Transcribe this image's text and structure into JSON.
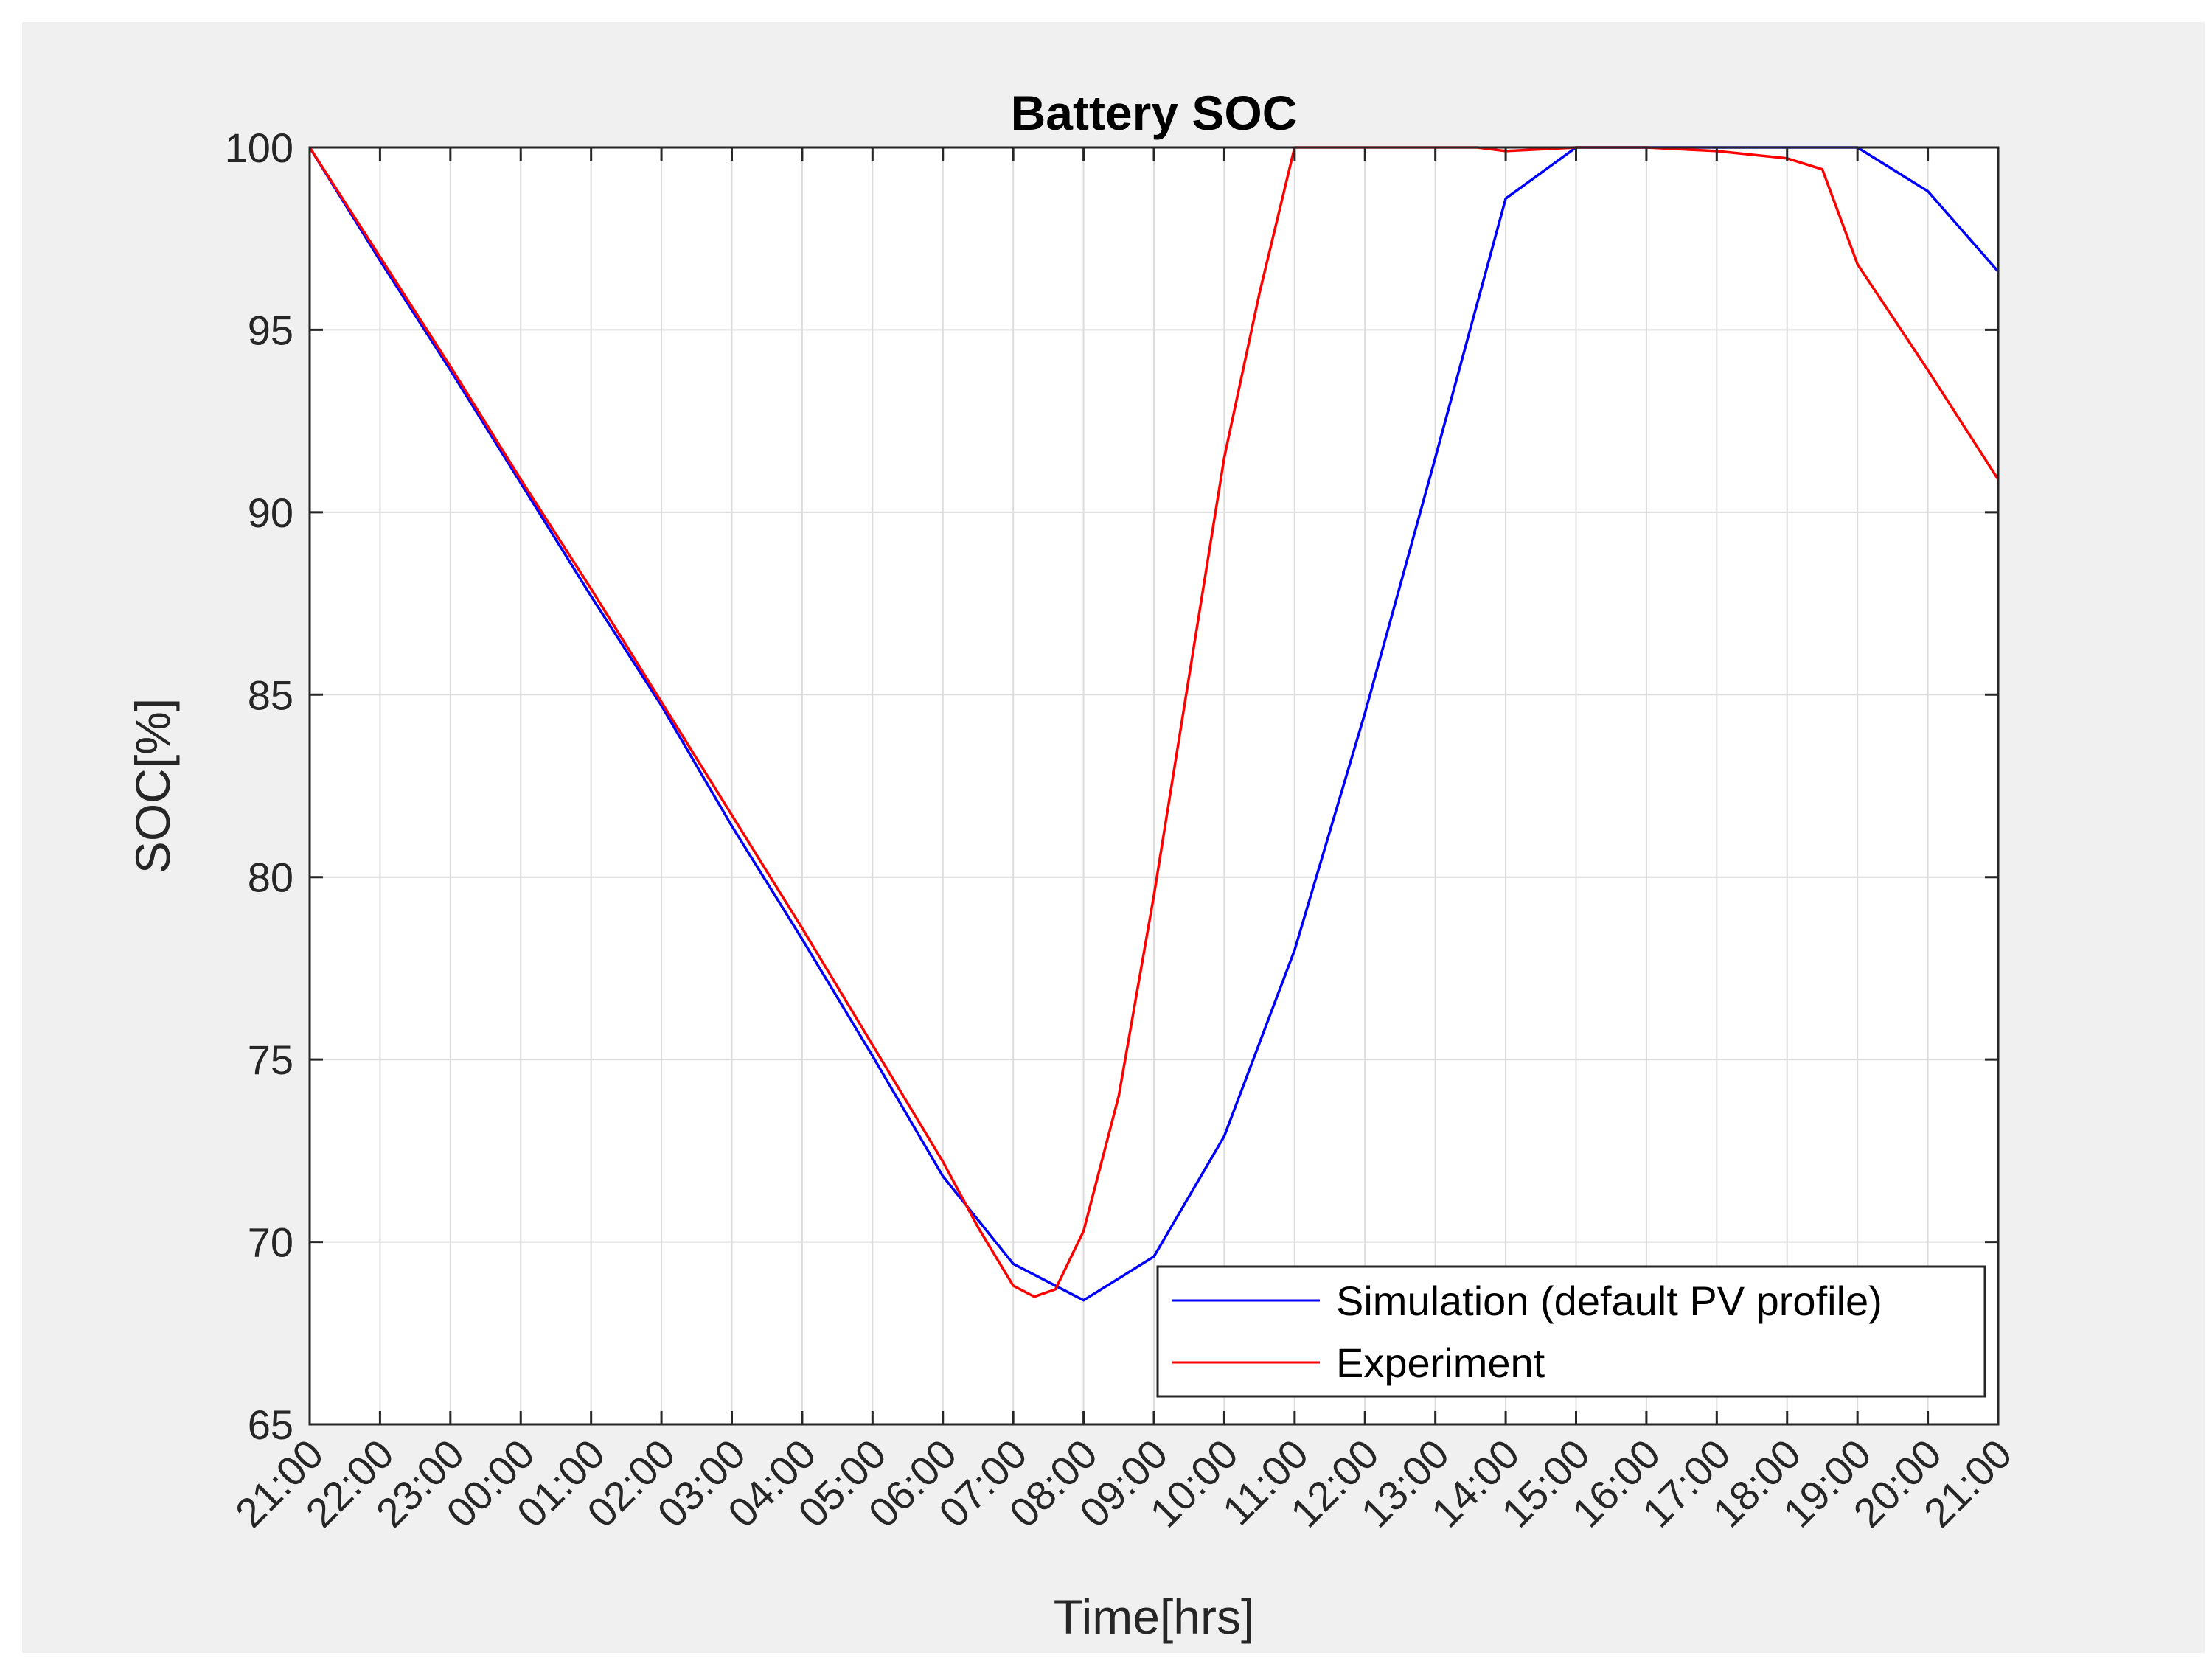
{
  "chart_data": {
    "type": "line",
    "title": "Battery SOC",
    "xlabel": "Time[hrs]",
    "ylabel": "SOC[%]",
    "ylim": [
      65,
      100
    ],
    "yticks": [
      65,
      70,
      75,
      80,
      85,
      90,
      95,
      100
    ],
    "xlim": [
      0,
      24
    ],
    "xtick_labels": [
      "21:00",
      "22:00",
      "23:00",
      "00:00",
      "01:00",
      "02:00",
      "03:00",
      "04:00",
      "05:00",
      "06:00",
      "07:00",
      "08:00",
      "09:00",
      "10:00",
      "11:00",
      "12:00",
      "13:00",
      "14:00",
      "15:00",
      "16:00",
      "17:00",
      "18:00",
      "19:00",
      "20:00",
      "21:00"
    ],
    "grid": true,
    "legend_position": "bottom-right",
    "series": [
      {
        "name": "Simulation (default PV profile)",
        "color": "#0000ff",
        "x": [
          0,
          1,
          2,
          3,
          4,
          5,
          6,
          7,
          8,
          9,
          10,
          11,
          12,
          13,
          14,
          15,
          16,
          17,
          18,
          19,
          20,
          21,
          22,
          23,
          24
        ],
        "y": [
          100,
          96.9,
          93.9,
          90.8,
          87.7,
          84.7,
          81.4,
          78.3,
          75.1,
          71.8,
          69.4,
          68.4,
          69.6,
          72.9,
          78.0,
          84.5,
          91.5,
          98.6,
          100,
          100,
          100,
          100,
          100,
          98.8,
          96.6
        ]
      },
      {
        "name": "Experiment",
        "color": "#ff0000",
        "x": [
          0,
          1,
          2,
          3,
          4,
          5,
          6,
          7,
          8,
          9,
          9.5,
          10,
          10.3,
          10.6,
          11,
          11.5,
          12,
          12.5,
          13,
          13.5,
          14,
          15,
          16,
          16.6,
          17,
          18,
          19,
          20,
          21,
          21.5,
          22,
          23,
          24
        ],
        "y": [
          100,
          97.0,
          94.0,
          90.9,
          87.9,
          84.8,
          81.7,
          78.6,
          75.4,
          72.2,
          70.4,
          68.8,
          68.5,
          68.7,
          70.3,
          74.0,
          79.5,
          85.5,
          91.5,
          96.0,
          100,
          100,
          100,
          100,
          99.9,
          100,
          100,
          99.9,
          99.7,
          99.4,
          96.8,
          93.9,
          90.9
        ]
      }
    ]
  }
}
